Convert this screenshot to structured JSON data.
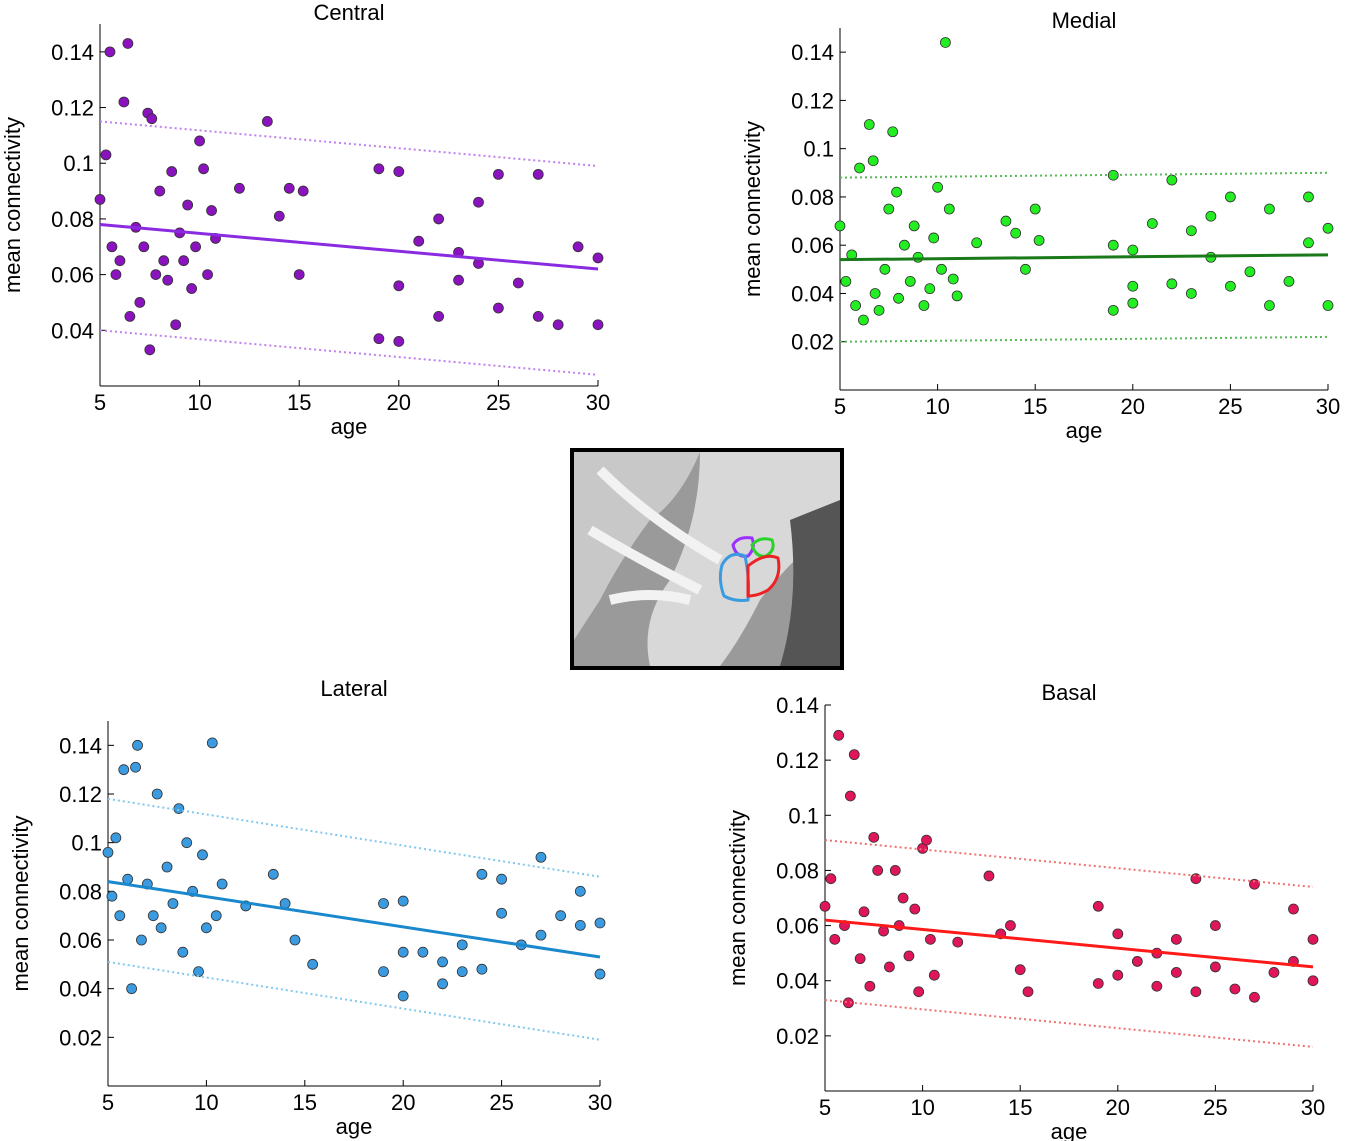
{
  "chart_data": [
    {
      "type": "scatter",
      "title": "Central",
      "x_label": "age",
      "y_label": "mean connectivity",
      "xlim": [
        5,
        30
      ],
      "ylim": [
        0.02,
        0.15
      ],
      "xticks": [
        5,
        10,
        15,
        20,
        25,
        30
      ],
      "yticks": [
        0.04,
        0.06,
        0.08,
        0.1,
        0.12,
        0.14
      ],
      "series": [
        {
          "style": "markers",
          "color": "#8a12bf",
          "x": [
            5,
            5.3,
            5.5,
            5.6,
            5.8,
            6,
            6.2,
            6.4,
            6.5,
            6.8,
            7,
            7.2,
            7.4,
            7.5,
            7.6,
            7.8,
            8,
            8.2,
            8.4,
            8.6,
            8.8,
            9,
            9.2,
            9.4,
            9.6,
            9.8,
            10,
            10.2,
            10.4,
            10.6,
            10.8,
            12,
            13.4,
            14,
            14.5,
            15,
            15.2,
            19,
            19,
            20,
            20,
            20,
            21,
            22,
            22,
            23,
            23,
            24,
            24,
            25,
            25,
            26,
            27,
            27,
            28,
            29,
            30,
            30
          ],
          "values": [
            0.087,
            0.103,
            0.14,
            0.07,
            0.06,
            0.065,
            0.122,
            0.143,
            0.045,
            0.077,
            0.05,
            0.07,
            0.118,
            0.033,
            0.116,
            0.06,
            0.09,
            0.065,
            0.058,
            0.097,
            0.042,
            0.075,
            0.065,
            0.085,
            0.055,
            0.07,
            0.108,
            0.098,
            0.06,
            0.083,
            0.073,
            0.091,
            0.115,
            0.081,
            0.091,
            0.06,
            0.09,
            0.098,
            0.037,
            0.056,
            0.036,
            0.097,
            0.072,
            0.08,
            0.045,
            0.058,
            0.068,
            0.086,
            0.064,
            0.096,
            0.048,
            0.057,
            0.096,
            0.045,
            0.042,
            0.07,
            0.066,
            0.042
          ]
        },
        {
          "style": "line",
          "color": "#8a2be2",
          "x": [
            5,
            30
          ],
          "values": [
            0.078,
            0.062
          ]
        },
        {
          "style": "dotted",
          "color": "#c080f0",
          "x": [
            5,
            30
          ],
          "values": [
            0.115,
            0.099
          ]
        },
        {
          "style": "dotted",
          "color": "#c080f0",
          "x": [
            5,
            30
          ],
          "values": [
            0.04,
            0.024
          ]
        }
      ]
    },
    {
      "type": "scatter",
      "title": "Medial",
      "x_label": "age",
      "y_label": "mean connectivity",
      "xlim": [
        5,
        30
      ],
      "ylim": [
        0,
        0.15
      ],
      "xticks": [
        5,
        10,
        15,
        20,
        25,
        30
      ],
      "yticks": [
        0.02,
        0.04,
        0.06,
        0.08,
        0.1,
        0.12,
        0.14
      ],
      "series": [
        {
          "style": "markers",
          "color": "#22ee22",
          "x": [
            5,
            5.3,
            5.6,
            5.8,
            6,
            6.2,
            6.5,
            6.7,
            6.8,
            7,
            7.3,
            7.5,
            7.7,
            7.9,
            8,
            8.3,
            8.6,
            8.8,
            9,
            9.3,
            9.6,
            9.8,
            10,
            10.2,
            10.4,
            10.6,
            10.8,
            11,
            12,
            13.5,
            14,
            14.5,
            15,
            15.2,
            19,
            19,
            19,
            20,
            20,
            20,
            21,
            22,
            22,
            23,
            23,
            24,
            24,
            25,
            25,
            26,
            27,
            27,
            28,
            29,
            29,
            30,
            30
          ],
          "values": [
            0.068,
            0.045,
            0.056,
            0.035,
            0.092,
            0.029,
            0.11,
            0.095,
            0.04,
            0.033,
            0.05,
            0.075,
            0.107,
            0.082,
            0.038,
            0.06,
            0.045,
            0.068,
            0.055,
            0.035,
            0.042,
            0.063,
            0.084,
            0.05,
            0.144,
            0.075,
            0.046,
            0.039,
            0.061,
            0.07,
            0.065,
            0.05,
            0.075,
            0.062,
            0.089,
            0.033,
            0.06,
            0.058,
            0.036,
            0.043,
            0.069,
            0.087,
            0.044,
            0.066,
            0.04,
            0.072,
            0.055,
            0.08,
            0.043,
            0.049,
            0.075,
            0.035,
            0.045,
            0.08,
            0.061,
            0.067,
            0.035
          ]
        },
        {
          "style": "line",
          "color": "#1a7a1a",
          "x": [
            5,
            30
          ],
          "values": [
            0.054,
            0.056
          ]
        },
        {
          "style": "dotted",
          "color": "#55bb55",
          "x": [
            5,
            30
          ],
          "values": [
            0.088,
            0.09
          ]
        },
        {
          "style": "dotted",
          "color": "#55bb55",
          "x": [
            5,
            30
          ],
          "values": [
            0.02,
            0.022
          ]
        }
      ]
    },
    {
      "type": "scatter",
      "title": "Lateral",
      "x_label": "age",
      "y_label": "mean connectivity",
      "xlim": [
        5,
        30
      ],
      "ylim": [
        0,
        0.15
      ],
      "xticks": [
        5,
        10,
        15,
        20,
        25,
        30
      ],
      "yticks": [
        0.02,
        0.04,
        0.06,
        0.08,
        0.1,
        0.12,
        0.14
      ],
      "series": [
        {
          "style": "markers",
          "color": "#3a9be0",
          "x": [
            5,
            5.2,
            5.4,
            5.6,
            5.8,
            6,
            6.2,
            6.4,
            6.5,
            6.7,
            7,
            7.3,
            7.5,
            7.7,
            8,
            8.3,
            8.6,
            8.8,
            9,
            9.3,
            9.6,
            9.8,
            10,
            10.3,
            10.5,
            10.8,
            12,
            13.4,
            14,
            14.5,
            15.4,
            19,
            19,
            20,
            20,
            20,
            21,
            22,
            22,
            23,
            23,
            24,
            24,
            25,
            25,
            26,
            27,
            27,
            28,
            29,
            29,
            30,
            30
          ],
          "values": [
            0.096,
            0.078,
            0.102,
            0.07,
            0.13,
            0.085,
            0.04,
            0.131,
            0.14,
            0.06,
            0.083,
            0.07,
            0.12,
            0.065,
            0.09,
            0.075,
            0.114,
            0.055,
            0.1,
            0.08,
            0.047,
            0.095,
            0.065,
            0.141,
            0.07,
            0.083,
            0.074,
            0.087,
            0.075,
            0.06,
            0.05,
            0.075,
            0.047,
            0.076,
            0.037,
            0.055,
            0.055,
            0.051,
            0.042,
            0.058,
            0.047,
            0.087,
            0.048,
            0.085,
            0.071,
            0.058,
            0.094,
            0.062,
            0.07,
            0.08,
            0.066,
            0.067,
            0.046
          ]
        },
        {
          "style": "line",
          "color": "#1a88cc",
          "x": [
            5,
            30
          ],
          "values": [
            0.084,
            0.053
          ]
        },
        {
          "style": "dotted",
          "color": "#80c8ee",
          "x": [
            5,
            30
          ],
          "values": [
            0.118,
            0.086
          ]
        },
        {
          "style": "dotted",
          "color": "#80c8ee",
          "x": [
            5,
            30
          ],
          "values": [
            0.051,
            0.019
          ]
        }
      ]
    },
    {
      "type": "scatter",
      "title": "Basal",
      "x_label": "age",
      "y_label": "mean connectivity",
      "xlim": [
        5,
        30
      ],
      "ylim": [
        0,
        0.14
      ],
      "xticks": [
        5,
        10,
        15,
        20,
        25,
        30
      ],
      "yticks": [
        0.02,
        0.04,
        0.06,
        0.08,
        0.1,
        0.12,
        0.14
      ],
      "series": [
        {
          "style": "markers",
          "color": "#e0155a",
          "x": [
            5,
            5.3,
            5.5,
            5.7,
            6,
            6.2,
            6.3,
            6.5,
            6.8,
            7,
            7.3,
            7.5,
            7.7,
            8,
            8.3,
            8.6,
            8.8,
            9,
            9.3,
            9.6,
            9.8,
            10,
            10.2,
            10.4,
            10.6,
            11.8,
            13.4,
            14,
            14.5,
            15,
            15.4,
            19,
            19,
            20,
            20,
            21,
            22,
            22,
            23,
            23,
            24,
            24,
            25,
            25,
            26,
            27,
            27,
            28,
            29,
            29,
            30,
            30
          ],
          "values": [
            0.067,
            0.077,
            0.055,
            0.129,
            0.06,
            0.032,
            0.107,
            0.122,
            0.048,
            0.065,
            0.038,
            0.092,
            0.08,
            0.058,
            0.045,
            0.08,
            0.06,
            0.07,
            0.049,
            0.066,
            0.036,
            0.088,
            0.091,
            0.055,
            0.042,
            0.054,
            0.078,
            0.057,
            0.06,
            0.044,
            0.036,
            0.067,
            0.039,
            0.057,
            0.042,
            0.047,
            0.05,
            0.038,
            0.055,
            0.043,
            0.077,
            0.036,
            0.06,
            0.045,
            0.037,
            0.075,
            0.034,
            0.043,
            0.066,
            0.047,
            0.055,
            0.04
          ]
        },
        {
          "style": "line",
          "color": "#ff1a1a",
          "x": [
            5,
            30
          ],
          "values": [
            0.062,
            0.045
          ]
        },
        {
          "style": "dotted",
          "color": "#f07070",
          "x": [
            5,
            30
          ],
          "values": [
            0.091,
            0.074
          ]
        },
        {
          "style": "dotted",
          "color": "#f07070",
          "x": [
            5,
            30
          ],
          "values": [
            0.033,
            0.016
          ]
        }
      ]
    }
  ]
}
